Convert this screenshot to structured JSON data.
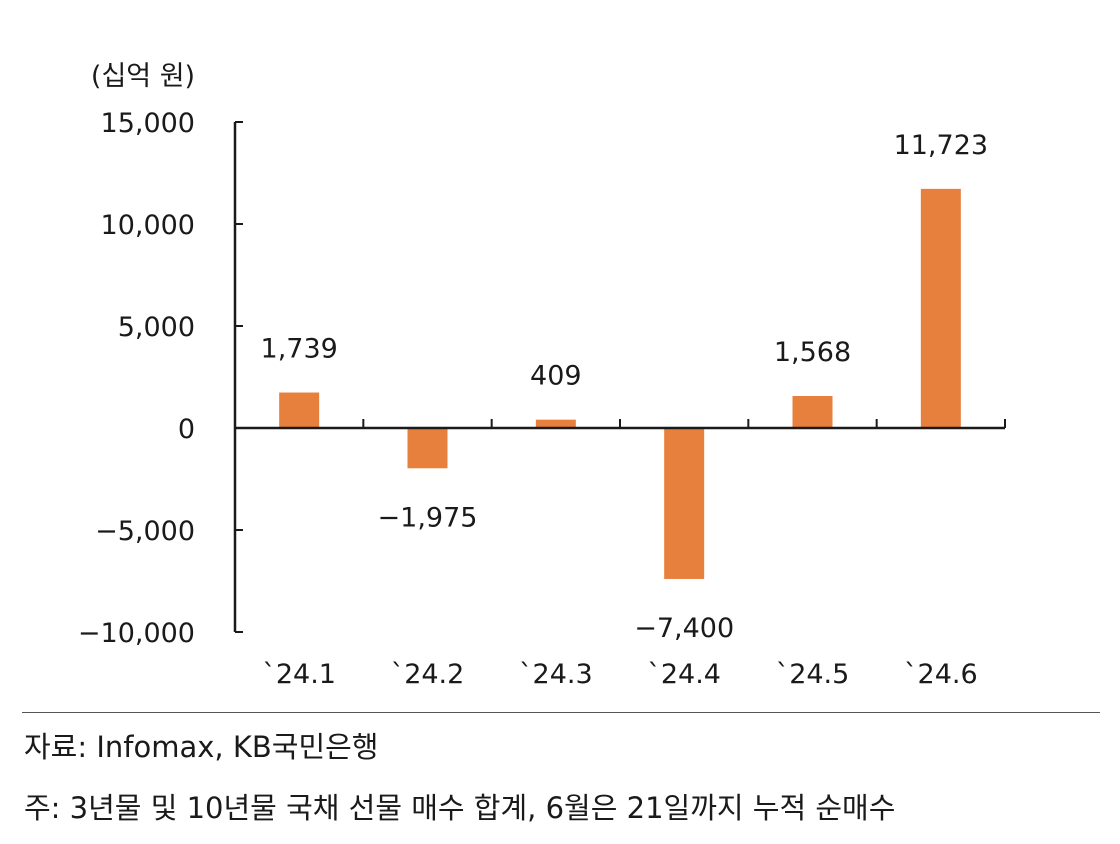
{
  "chart_data": {
    "type": "bar",
    "unit_label": "(십억 원)",
    "categories": [
      "`24.1",
      "`24.2",
      "`24.3",
      "`24.4",
      "`24.5",
      "`24.6"
    ],
    "values": [
      1739,
      -1975,
      409,
      -7400,
      1568,
      11723
    ],
    "data_labels": [
      "1,739",
      "−1,975",
      "409",
      "−7,400",
      "1,568",
      "11,723"
    ],
    "ylim": [
      -10000,
      15000
    ],
    "yticks": [
      15000,
      10000,
      5000,
      0,
      -5000,
      -10000
    ],
    "ytick_labels": [
      "15,000",
      "10,000",
      "5,000",
      "0",
      "−5,000",
      "−10,000"
    ],
    "bar_color": "#E8803D",
    "grid": false,
    "legend": "none"
  },
  "notes": {
    "source": "자료:  Infomax, KB국민은행",
    "footnote": "주: 3년물 및 10년물 국채 선물 매수 합계, 6월은 21일까지 누적 순매수"
  }
}
